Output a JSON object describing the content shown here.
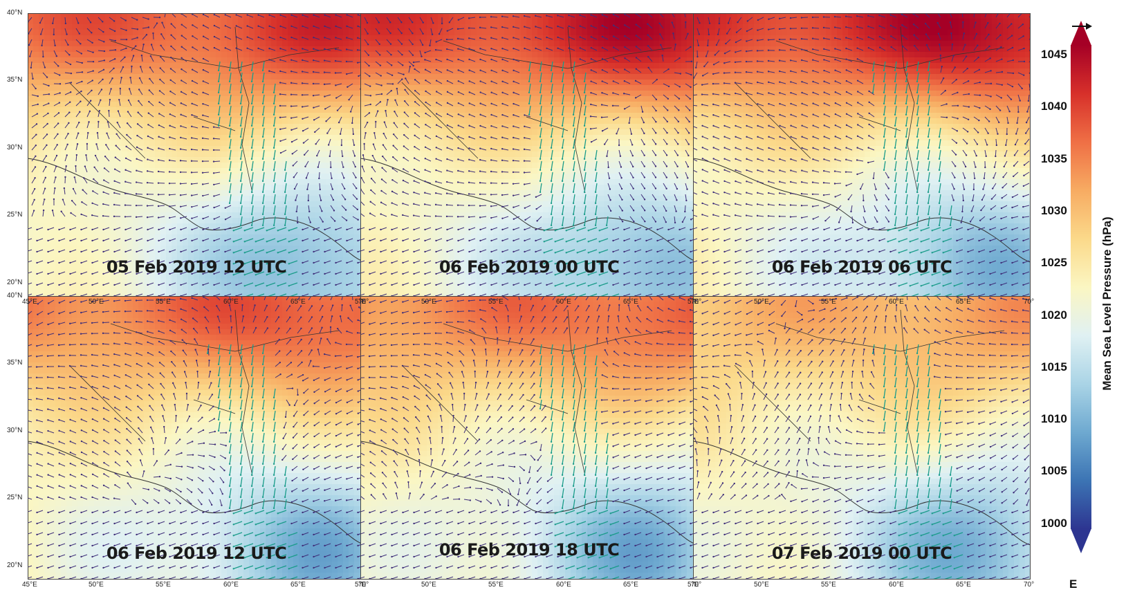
{
  "panels": [
    {
      "title": "05 Feb 2019 12 UTC",
      "lat_labels": [
        "40°N",
        "35°N",
        "30°N",
        "25°N",
        "20°N"
      ],
      "lon_labels": [
        "45°E",
        "50°E",
        "55°E",
        "60°E",
        "65°E",
        "70°"
      ]
    },
    {
      "title": "06 Feb 2019 00 UTC",
      "lat_labels": [
        "",
        "",
        "",
        "",
        ""
      ],
      "lon_labels": [
        "5°E",
        "50°E",
        "55°E",
        "60°E",
        "65°E",
        "70°"
      ]
    },
    {
      "title": "06 Feb 2019 06 UTC",
      "lat_labels": [
        "",
        "",
        "",
        "",
        ""
      ],
      "lon_labels": [
        "5°E",
        "50°E",
        "55°E",
        "60°E",
        "65°E",
        "70°"
      ]
    },
    {
      "title": "06 Feb 2019 12 UTC",
      "lat_labels": [
        "40°N",
        "35°N",
        "30°N",
        "25°N",
        "20°N"
      ],
      "lon_labels": [
        "45°E",
        "50°E",
        "55°E",
        "60°E",
        "65°E",
        "70°"
      ]
    },
    {
      "title": "06 Feb 2019 18 UTC",
      "lat_labels": [
        "",
        "",
        "",
        "",
        ""
      ],
      "lon_labels": [
        "5°E",
        "50°E",
        "55°E",
        "60°E",
        "65°E",
        "70°"
      ]
    },
    {
      "title": "07 Feb 2019 00 UTC",
      "lat_labels": [
        "",
        "",
        "",
        "",
        ""
      ],
      "lon_labels": [
        "5°E",
        "50°E",
        "55°E",
        "60°E",
        "65°E",
        "70°"
      ]
    }
  ],
  "colorbar": {
    "title": "Mean Sea Level Pressure (hPa)",
    "ticks": [
      "1045",
      "1040",
      "1035",
      "1030",
      "1025",
      "1020",
      "1015",
      "1010",
      "1005",
      "1000"
    ],
    "range_hpa": [
      1000,
      1047
    ],
    "extend": "both",
    "colors": [
      "#2d3591",
      "#3c74b4",
      "#6ea9d0",
      "#aad4e6",
      "#e0f1f3",
      "#fbf6c2",
      "#fbd98a",
      "#f7ab62",
      "#ef6f45",
      "#d7302a",
      "#a50026"
    ]
  },
  "reference_arrow_label": "E",
  "field_colors": {
    "vector": "#3f2f7a",
    "jet_vector": "#1a9c8a",
    "coast": "#333333"
  }
}
